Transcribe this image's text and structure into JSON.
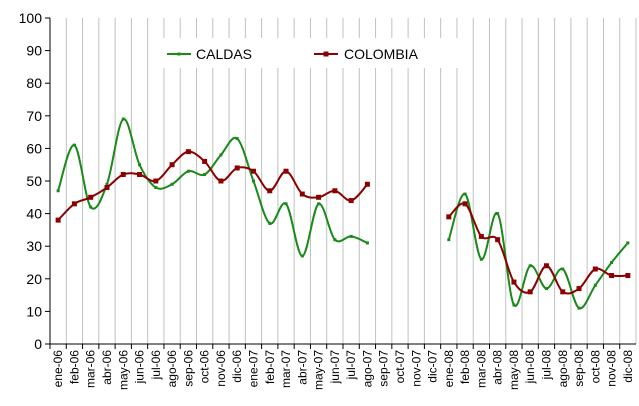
{
  "chart_data": {
    "type": "line",
    "categories": [
      "ene-06",
      "feb-06",
      "mar-06",
      "abr-06",
      "may-06",
      "jun-06",
      "jul-06",
      "ago-06",
      "sep-06",
      "oct-06",
      "nov-06",
      "dic-06",
      "ene-07",
      "feb-07",
      "mar-07",
      "abr-07",
      "may-07",
      "jun-07",
      "jul-07",
      "ago-07",
      "sep-07",
      "oct-07",
      "nov-07",
      "dic-07",
      "ene-08",
      "feb-08",
      "mar-08",
      "abr-08",
      "may-08",
      "jun-08",
      "jul-08",
      "ago-08",
      "sep-08",
      "oct-08",
      "nov-08",
      "dic-08"
    ],
    "x_tick_labels": [
      "ene-06",
      "feb-06",
      "mar-06",
      "abr-06",
      "may-06",
      "jun-06",
      "jul-06",
      "ago-06",
      "sep-06",
      "oct-06",
      "nov-06",
      "dic-06",
      "ene-07",
      "feb-07",
      "mar-07",
      "abr-07",
      "may-07",
      "jun-07",
      "jul-07",
      "ago-07",
      "sep-07",
      "oct-07",
      "nov-07",
      "dic-07",
      "ene-08",
      "feb-08",
      "mar-08",
      "abr-08",
      "may-08",
      "jun-08",
      "jul-08",
      "ago-08",
      "sep-08",
      "oct-08",
      "nov-08",
      "dic-08"
    ],
    "series": [
      {
        "name": "CALDAS",
        "color": "#1a8a1a",
        "values": [
          47,
          61,
          42,
          49,
          69,
          55,
          48,
          49,
          53,
          52,
          58,
          63,
          50,
          37,
          43,
          27,
          43,
          32,
          33,
          31,
          null,
          null,
          null,
          null,
          32,
          46,
          26,
          40,
          12,
          24,
          17,
          23,
          11,
          18,
          25,
          31
        ]
      },
      {
        "name": "COLOMBIA",
        "color": "#8b0000",
        "values": [
          38,
          43,
          45,
          48,
          52,
          52,
          50,
          55,
          59,
          56,
          50,
          54,
          53,
          47,
          53,
          46,
          45,
          47,
          44,
          49,
          null,
          null,
          null,
          null,
          39,
          43,
          33,
          32,
          19,
          16,
          24,
          16,
          17,
          23,
          21,
          21
        ]
      }
    ],
    "ylim": [
      0,
      100
    ],
    "y_ticks": [
      "0",
      "10",
      "20",
      "30",
      "40",
      "50",
      "60",
      "70",
      "80",
      "90",
      "100"
    ],
    "grid": "vertical",
    "legend_position": "top-center"
  }
}
